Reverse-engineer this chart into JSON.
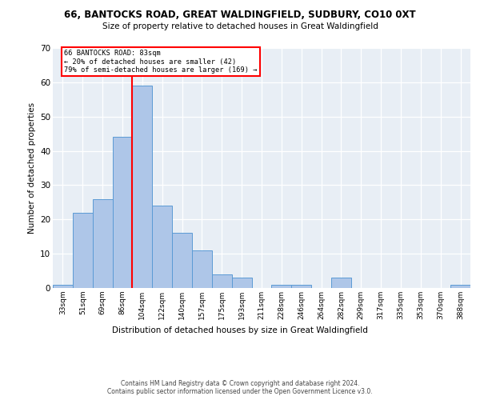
{
  "title1": "66, BANTOCKS ROAD, GREAT WALDINGFIELD, SUDBURY, CO10 0XT",
  "title2": "Size of property relative to detached houses in Great Waldingfield",
  "xlabel": "Distribution of detached houses by size in Great Waldingfield",
  "ylabel": "Number of detached properties",
  "footer1": "Contains HM Land Registry data © Crown copyright and database right 2024.",
  "footer2": "Contains public sector information licensed under the Open Government Licence v3.0.",
  "bin_labels": [
    "33sqm",
    "51sqm",
    "69sqm",
    "86sqm",
    "104sqm",
    "122sqm",
    "140sqm",
    "157sqm",
    "175sqm",
    "193sqm",
    "211sqm",
    "228sqm",
    "246sqm",
    "264sqm",
    "282sqm",
    "299sqm",
    "317sqm",
    "335sqm",
    "353sqm",
    "370sqm",
    "388sqm"
  ],
  "bar_heights": [
    1,
    22,
    26,
    44,
    59,
    24,
    16,
    11,
    4,
    3,
    0,
    1,
    1,
    0,
    3,
    0,
    0,
    0,
    0,
    0,
    1
  ],
  "bar_color": "#aec6e8",
  "bar_edge_color": "#5b9bd5",
  "vline_color": "red",
  "vline_position": 3.5,
  "annotation_line1": "66 BANTOCKS ROAD: 83sqm",
  "annotation_line2": "← 20% of detached houses are smaller (42)",
  "annotation_line3": "79% of semi-detached houses are larger (169) →",
  "ylim": [
    0,
    70
  ],
  "yticks": [
    0,
    10,
    20,
    30,
    40,
    50,
    60,
    70
  ],
  "bg_color": "#e8eef5"
}
